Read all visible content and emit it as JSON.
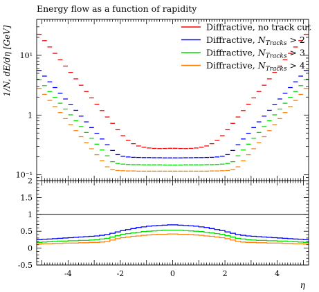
{
  "chart_data": [
    {
      "type": "line",
      "panel": "main",
      "title": "Energy flow as a function of rapidity",
      "xlabel": "η",
      "ylabel": "1/N, dE/dη [GeV]",
      "y_scale": "log",
      "xlim": [
        -5.2,
        5.2
      ],
      "ylim": [
        0.08,
        40
      ],
      "x_ticks": [
        -4,
        -2,
        0,
        2,
        4
      ],
      "y_tick_labels": [
        "10⁻¹",
        "1",
        "10¹"
      ],
      "legend_position": "top-right",
      "x": [
        -5.1,
        -4.9,
        -4.7,
        -4.5,
        -4.3,
        -4.1,
        -3.9,
        -3.7,
        -3.5,
        -3.3,
        -3.1,
        -2.9,
        -2.7,
        -2.5,
        -2.3,
        -2.1,
        -1.9,
        -1.7,
        -1.5,
        -1.3,
        -1.1,
        -0.9,
        -0.7,
        -0.5,
        -0.3,
        -0.1,
        0.1,
        0.3,
        0.5,
        0.7,
        0.9,
        1.1,
        1.3,
        1.5,
        1.7,
        1.9,
        2.1,
        2.3,
        2.5,
        2.7,
        2.9,
        3.1,
        3.3,
        3.5,
        3.7,
        3.9,
        4.1,
        4.3,
        4.5,
        4.7,
        4.9,
        5.1
      ],
      "series": [
        {
          "name": "Diffractive, no track cut",
          "color": "#ff0000",
          "values": [
            22.5,
            17.6,
            13.8,
            10.8,
            8.45,
            6.61,
            5.17,
            4.04,
            3.16,
            2.48,
            1.94,
            1.52,
            1.19,
            0.929,
            0.727,
            0.569,
            0.452,
            0.377,
            0.332,
            0.304,
            0.29,
            0.281,
            0.277,
            0.275,
            0.276,
            0.278,
            0.278,
            0.276,
            0.275,
            0.277,
            0.281,
            0.29,
            0.304,
            0.332,
            0.377,
            0.452,
            0.569,
            0.727,
            0.929,
            1.19,
            1.52,
            1.94,
            2.48,
            3.16,
            4.04,
            5.17,
            6.61,
            8.45,
            10.8,
            13.8,
            17.6,
            22.5
          ]
        },
        {
          "name": "Diffractive, N_Tracks > 2",
          "color": "#0000ff",
          "values": [
            5.6,
            4.49,
            3.6,
            2.89,
            2.32,
            1.86,
            1.49,
            1.2,
            0.96,
            0.77,
            0.618,
            0.496,
            0.398,
            0.319,
            0.256,
            0.218,
            0.204,
            0.199,
            0.196,
            0.195,
            0.194,
            0.194,
            0.193,
            0.193,
            0.192,
            0.192,
            0.192,
            0.192,
            0.193,
            0.193,
            0.194,
            0.194,
            0.195,
            0.196,
            0.199,
            0.204,
            0.218,
            0.256,
            0.319,
            0.398,
            0.496,
            0.618,
            0.77,
            0.96,
            1.2,
            1.49,
            1.86,
            2.32,
            2.89,
            3.6,
            4.49,
            5.6
          ]
        },
        {
          "name": "Diffractive, N_Tracks > 3",
          "color": "#00dd00",
          "values": [
            3.9,
            3.11,
            2.48,
            1.98,
            1.58,
            1.26,
            1.01,
            0.804,
            0.642,
            0.512,
            0.409,
            0.326,
            0.26,
            0.208,
            0.166,
            0.155,
            0.151,
            0.149,
            0.148,
            0.148,
            0.147,
            0.147,
            0.147,
            0.147,
            0.146,
            0.146,
            0.146,
            0.146,
            0.147,
            0.147,
            0.147,
            0.147,
            0.148,
            0.148,
            0.149,
            0.151,
            0.155,
            0.166,
            0.208,
            0.26,
            0.326,
            0.409,
            0.512,
            0.642,
            0.804,
            1.01,
            1.26,
            1.58,
            1.98,
            2.48,
            3.11,
            3.9
          ]
        },
        {
          "name": "Diffractive, N_Tracks > 4",
          "color": "#ff8000",
          "values": [
            2.8,
            2.22,
            1.76,
            1.39,
            1.1,
            0.873,
            0.692,
            0.549,
            0.435,
            0.345,
            0.273,
            0.217,
            0.172,
            0.136,
            0.122,
            0.118,
            0.117,
            0.116,
            0.116,
            0.115,
            0.115,
            0.115,
            0.115,
            0.115,
            0.115,
            0.115,
            0.115,
            0.115,
            0.115,
            0.115,
            0.115,
            0.115,
            0.115,
            0.116,
            0.116,
            0.117,
            0.118,
            0.122,
            0.136,
            0.172,
            0.217,
            0.273,
            0.345,
            0.435,
            0.549,
            0.692,
            0.873,
            1.1,
            1.39,
            1.76,
            2.22,
            2.8
          ]
        }
      ]
    },
    {
      "type": "line",
      "panel": "ratio",
      "xlabel": "η",
      "xlim": [
        -5.2,
        5.2
      ],
      "ylim": [
        -0.5,
        2
      ],
      "y_ticks": [
        -0.5,
        0,
        0.5,
        1,
        1.5,
        2
      ],
      "y_tick_labels": [
        "-0.5",
        "0",
        "0.5",
        "1",
        "1.5",
        "2"
      ],
      "reference_line": 1,
      "x": [
        -5.1,
        -4.9,
        -4.7,
        -4.5,
        -4.3,
        -4.1,
        -3.9,
        -3.7,
        -3.5,
        -3.3,
        -3.1,
        -2.9,
        -2.7,
        -2.5,
        -2.3,
        -2.1,
        -1.9,
        -1.7,
        -1.5,
        -1.3,
        -1.1,
        -0.9,
        -0.7,
        -0.5,
        -0.3,
        -0.1,
        0.1,
        0.3,
        0.5,
        0.7,
        0.9,
        1.1,
        1.3,
        1.5,
        1.7,
        1.9,
        2.1,
        2.3,
        2.5,
        2.7,
        2.9,
        3.1,
        3.3,
        3.5,
        3.7,
        3.9,
        4.1,
        4.3,
        4.5,
        4.7,
        4.9,
        5.1
      ],
      "series": [
        {
          "name": "Diffractive, N_Tracks > 2",
          "color": "#0000ff",
          "values": [
            0.25,
            0.26,
            0.27,
            0.28,
            0.29,
            0.3,
            0.31,
            0.32,
            0.33,
            0.34,
            0.35,
            0.36,
            0.38,
            0.4,
            0.44,
            0.48,
            0.52,
            0.55,
            0.58,
            0.61,
            0.63,
            0.65,
            0.66,
            0.67,
            0.68,
            0.69,
            0.69,
            0.68,
            0.67,
            0.66,
            0.65,
            0.63,
            0.61,
            0.58,
            0.55,
            0.52,
            0.48,
            0.44,
            0.4,
            0.38,
            0.36,
            0.35,
            0.34,
            0.33,
            0.32,
            0.31,
            0.3,
            0.29,
            0.28,
            0.27,
            0.26,
            0.25
          ]
        },
        {
          "name": "Diffractive, N_Tracks > 3",
          "color": "#00dd00",
          "values": [
            0.17,
            0.18,
            0.19,
            0.2,
            0.21,
            0.21,
            0.22,
            0.22,
            0.23,
            0.23,
            0.24,
            0.25,
            0.27,
            0.29,
            0.33,
            0.37,
            0.41,
            0.43,
            0.45,
            0.47,
            0.49,
            0.5,
            0.51,
            0.52,
            0.53,
            0.53,
            0.53,
            0.53,
            0.52,
            0.51,
            0.5,
            0.49,
            0.47,
            0.45,
            0.43,
            0.41,
            0.37,
            0.33,
            0.29,
            0.27,
            0.25,
            0.24,
            0.23,
            0.23,
            0.22,
            0.22,
            0.21,
            0.21,
            0.2,
            0.19,
            0.18,
            0.17
          ]
        },
        {
          "name": "Diffractive, N_Tracks > 4",
          "color": "#ff8000",
          "values": [
            0.12,
            0.13,
            0.13,
            0.14,
            0.14,
            0.15,
            0.15,
            0.15,
            0.16,
            0.16,
            0.17,
            0.17,
            0.18,
            0.2,
            0.24,
            0.28,
            0.31,
            0.33,
            0.35,
            0.36,
            0.38,
            0.39,
            0.4,
            0.41,
            0.41,
            0.42,
            0.42,
            0.41,
            0.41,
            0.4,
            0.39,
            0.38,
            0.36,
            0.35,
            0.33,
            0.31,
            0.28,
            0.24,
            0.2,
            0.18,
            0.17,
            0.17,
            0.16,
            0.16,
            0.15,
            0.15,
            0.15,
            0.14,
            0.14,
            0.13,
            0.13,
            0.12
          ]
        }
      ]
    }
  ]
}
